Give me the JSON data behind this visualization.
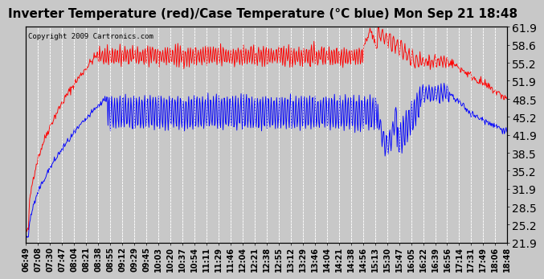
{
  "title": "Inverter Temperature (red)/Case Temperature (°C blue) Mon Sep 21 18:48",
  "copyright": "Copyright 2009 Cartronics.com",
  "yticks": [
    21.9,
    25.2,
    28.5,
    31.9,
    35.2,
    38.5,
    41.9,
    45.2,
    48.5,
    51.9,
    55.2,
    58.6,
    61.9
  ],
  "ylim": [
    21.9,
    61.9
  ],
  "xtick_labels": [
    "06:49",
    "07:08",
    "07:30",
    "07:47",
    "08:04",
    "08:21",
    "08:38",
    "08:55",
    "09:12",
    "09:29",
    "09:45",
    "10:03",
    "10:20",
    "10:37",
    "10:54",
    "11:11",
    "11:29",
    "11:46",
    "12:04",
    "12:21",
    "12:38",
    "12:55",
    "13:12",
    "13:29",
    "13:46",
    "14:04",
    "14:21",
    "14:38",
    "14:56",
    "15:13",
    "15:30",
    "15:47",
    "16:05",
    "16:22",
    "16:39",
    "16:56",
    "17:14",
    "17:31",
    "17:49",
    "18:06",
    "18:48"
  ],
  "red_color": "#ff0000",
  "blue_color": "#0000ff",
  "bg_color": "#c8c8c8",
  "plot_bg_color": "#c8c8c8",
  "grid_color": "#ffffff",
  "title_fontsize": 11,
  "tick_fontsize": 7,
  "copyright_fontsize": 6.5
}
